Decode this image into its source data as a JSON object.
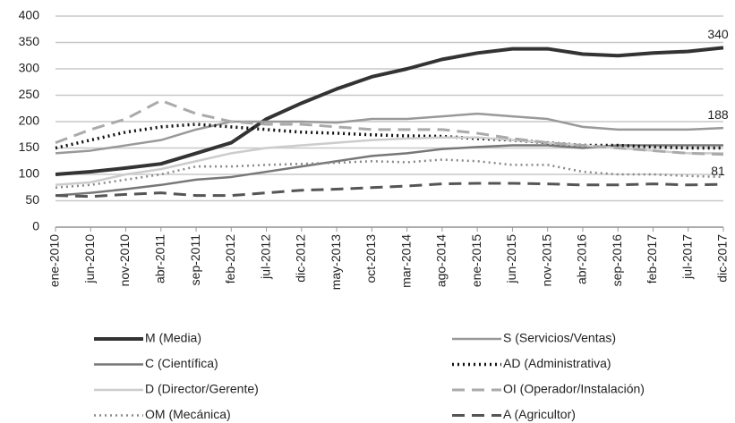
{
  "chart_data": {
    "type": "line",
    "categories": [
      "ene-2010",
      "jun-2010",
      "nov-2010",
      "abr-2011",
      "sep-2011",
      "feb-2012",
      "jul-2012",
      "dic-2012",
      "may-2013",
      "oct-2013",
      "mar-2014",
      "ago-2014",
      "ene-2015",
      "jun-2015",
      "nov-2015",
      "abr-2016",
      "sep-2016",
      "feb-2017",
      "jul-2017",
      "dic-2017"
    ],
    "series": [
      {
        "name": "M (Media)",
        "color": "#333333",
        "width": 4,
        "dash": "none",
        "end_label": true,
        "values": [
          100,
          105,
          112,
          120,
          140,
          160,
          205,
          235,
          262,
          285,
          300,
          318,
          330,
          338,
          338,
          328,
          325,
          330,
          333,
          340
        ]
      },
      {
        "name": "S (Servicios/Ventas)",
        "color": "#999999",
        "width": 2.5,
        "dash": "none",
        "end_label": true,
        "values": [
          140,
          145,
          155,
          165,
          185,
          200,
          200,
          200,
          198,
          205,
          205,
          210,
          215,
          210,
          205,
          190,
          185,
          185,
          185,
          188
        ]
      },
      {
        "name": "C (Científica)",
        "color": "#777777",
        "width": 2.5,
        "dash": "none",
        "values": [
          60,
          65,
          72,
          80,
          90,
          95,
          105,
          115,
          125,
          135,
          140,
          148,
          152,
          155,
          155,
          150,
          155,
          155,
          155,
          155
        ]
      },
      {
        "name": "AD (Administrativa)",
        "color": "#111111",
        "width": 3.5,
        "dash": "2 4",
        "values": [
          150,
          165,
          180,
          190,
          195,
          190,
          185,
          180,
          178,
          175,
          173,
          172,
          168,
          165,
          160,
          155,
          155,
          152,
          150,
          150
        ]
      },
      {
        "name": "D (Director/Gerente)",
        "color": "#cccccc",
        "width": 2.5,
        "dash": "none",
        "values": [
          80,
          85,
          100,
          110,
          125,
          140,
          150,
          155,
          160,
          165,
          168,
          170,
          170,
          165,
          160,
          155,
          150,
          145,
          140,
          140
        ]
      },
      {
        "name": "OI (Operador/Instalación)",
        "color": "#aaaaaa",
        "width": 3,
        "dash": "14 8",
        "values": [
          160,
          185,
          205,
          240,
          215,
          200,
          195,
          195,
          190,
          185,
          185,
          185,
          178,
          168,
          160,
          155,
          150,
          145,
          140,
          138
        ]
      },
      {
        "name": "OM (Mecánica)",
        "color": "#888888",
        "width": 2.5,
        "dash": "2 4",
        "values": [
          75,
          80,
          90,
          100,
          115,
          115,
          118,
          120,
          122,
          125,
          123,
          128,
          125,
          118,
          118,
          105,
          100,
          100,
          97,
          95
        ]
      },
      {
        "name": "A (Agricultor)",
        "color": "#555555",
        "width": 3,
        "dash": "14 8",
        "end_label": true,
        "values": [
          60,
          58,
          62,
          65,
          60,
          60,
          65,
          70,
          72,
          75,
          78,
          82,
          83,
          83,
          82,
          80,
          80,
          82,
          80,
          81
        ]
      }
    ],
    "ylim": [
      0,
      400
    ],
    "yticks": [
      0,
      50,
      100,
      150,
      200,
      250,
      300,
      350,
      400
    ],
    "grid": true
  }
}
